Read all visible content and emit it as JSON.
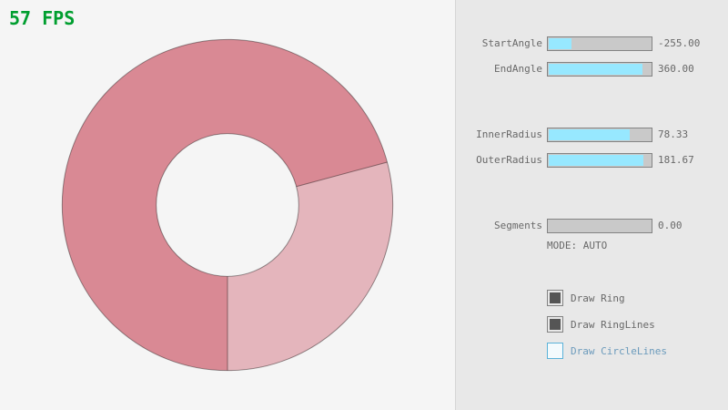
{
  "fps": {
    "label": "57 FPS"
  },
  "colors": {
    "fps_green": "#009e2f",
    "background": "#f5f5f5",
    "panel_bg": "#e8e8e8",
    "ring_overlap_dark": "#d98994",
    "ring_single_light": "#e4b5bc",
    "ring_line": "#000000",
    "slider_fill_cyan": "#97e8ff",
    "slider_track": "#c9c9c9",
    "checkbox_check": "#555555",
    "focused_blue": "#6c9bbc"
  },
  "chart_data": {
    "type": "ring",
    "title": "",
    "center": [
      250,
      225
    ],
    "inner_radius": 78.33,
    "outer_radius": 181.67,
    "start_angle": -255.0,
    "end_angle": 360.0,
    "segments": 0,
    "mode": "AUTO",
    "note": "overlapped sweep region drawn darker; single-pass sector (bottom-right, ~105 deg) drawn lighter"
  },
  "panel": {
    "sliders": [
      {
        "name": "start-angle",
        "label": "StartAngle",
        "value": "-255.00",
        "fill_pct": 21.67
      },
      {
        "name": "end-angle",
        "label": "EndAngle",
        "value": "360.00",
        "fill_pct": 90.0
      },
      {
        "name": "inner-radius",
        "label": "InnerRadius",
        "value": "78.33",
        "fill_pct": 78.33
      },
      {
        "name": "outer-radius",
        "label": "OuterRadius",
        "value": "181.67",
        "fill_pct": 90.83
      },
      {
        "name": "segments",
        "label": "Segments",
        "value": "0.00",
        "fill_pct": 0.0
      }
    ],
    "mode_text": "MODE: AUTO",
    "checkboxes": [
      {
        "label": "Draw Ring",
        "checked": true,
        "highlight": false
      },
      {
        "label": "Draw RingLines",
        "checked": true,
        "highlight": false
      },
      {
        "label": "Draw CircleLines",
        "checked": false,
        "highlight": true
      }
    ]
  }
}
